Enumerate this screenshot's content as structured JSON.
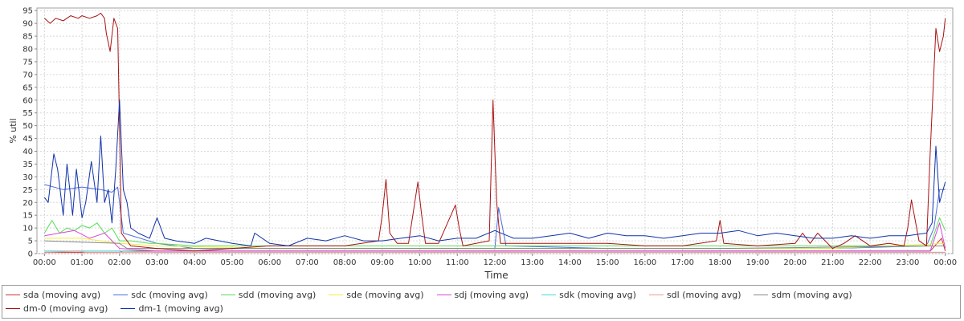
{
  "chart_data": {
    "type": "line",
    "ylabel": "% util",
    "xlabel": "Time",
    "ylim": [
      0,
      96
    ],
    "yticks": [
      0,
      5,
      10,
      15,
      20,
      25,
      30,
      35,
      40,
      45,
      50,
      55,
      60,
      65,
      70,
      75,
      80,
      85,
      90,
      95
    ],
    "xlim": [
      -0.2,
      24.2
    ],
    "xticks": [
      0,
      1,
      2,
      3,
      4,
      5,
      6,
      7,
      8,
      9,
      10,
      11,
      12,
      13,
      14,
      15,
      16,
      17,
      18,
      19,
      20,
      21,
      22,
      23,
      24
    ],
    "xtick_labels": [
      "00:00",
      "01:00",
      "02:00",
      "03:00",
      "04:00",
      "05:00",
      "06:00",
      "07:00",
      "08:00",
      "09:00",
      "10:00",
      "11:00",
      "12:00",
      "13:00",
      "14:00",
      "15:00",
      "16:00",
      "17:00",
      "18:00",
      "19:00",
      "20:00",
      "21:00",
      "22:00",
      "23:00",
      "00:00"
    ],
    "grid": true,
    "legend_position": "bottom",
    "series": [
      {
        "name": "sda (moving avg)",
        "color": "#cc3333",
        "x": [
          0,
          2,
          2.1,
          8,
          9,
          12,
          16,
          20,
          23.6,
          23.9,
          24
        ],
        "values": [
          0.5,
          0.5,
          1,
          1,
          1,
          1,
          1,
          1,
          1,
          6,
          1
        ]
      },
      {
        "name": "sdc (moving avg)",
        "color": "#4a6ee0",
        "x": [
          0,
          0.5,
          1,
          1.5,
          1.8,
          1.95,
          2.1,
          3,
          4,
          6,
          9,
          12,
          12.1,
          12.3,
          15,
          18,
          21,
          23.5,
          23.7,
          23.85,
          24
        ],
        "values": [
          27,
          25,
          26,
          25,
          24,
          26,
          8,
          4,
          2,
          2,
          2,
          2,
          18,
          3,
          2,
          2,
          2,
          3,
          10,
          25,
          25
        ]
      },
      {
        "name": "sdd (moving avg)",
        "color": "#55dd55",
        "x": [
          0,
          0.2,
          0.4,
          0.6,
          0.8,
          1,
          1.2,
          1.4,
          1.6,
          1.8,
          2,
          2.3,
          2.8,
          3,
          4,
          6,
          9,
          12,
          15,
          18,
          21,
          23.6,
          23.85,
          24
        ],
        "values": [
          8,
          13,
          8,
          10,
          9,
          11,
          10,
          12,
          8,
          10,
          5,
          5,
          4,
          4,
          3,
          3,
          3,
          3,
          3,
          3,
          3,
          3,
          14,
          9
        ]
      },
      {
        "name": "sde (moving avg)",
        "color": "#eeee44",
        "x": [
          0,
          1,
          2,
          3,
          6,
          9,
          12,
          15,
          18,
          21,
          24
        ],
        "values": [
          6,
          6,
          4,
          3,
          2,
          2,
          2,
          2,
          2,
          2,
          4
        ]
      },
      {
        "name": "sdj (moving avg)",
        "color": "#dd44dd",
        "x": [
          0,
          0.8,
          1.2,
          1.6,
          2,
          3,
          6,
          12,
          18,
          23.6,
          23.85,
          24
        ],
        "values": [
          7,
          9,
          6,
          8,
          2,
          1,
          1,
          1,
          1,
          1,
          12,
          2
        ]
      },
      {
        "name": "sdk (moving avg)",
        "color": "#44dddd",
        "x": [
          0,
          2,
          3,
          9,
          12,
          18,
          24
        ],
        "values": [
          1,
          1,
          0.5,
          0.5,
          0.5,
          0.5,
          0.5
        ]
      },
      {
        "name": "sdl (moving avg)",
        "color": "#ee9999",
        "x": [
          0,
          0.9,
          1.1,
          2,
          6,
          12,
          18,
          24
        ],
        "values": [
          0.5,
          1,
          0.5,
          0.5,
          0.5,
          0.5,
          0.5,
          0.5
        ]
      },
      {
        "name": "sdm (moving avg)",
        "color": "#888888",
        "x": [
          0,
          2,
          2.2,
          6,
          12,
          18,
          24
        ],
        "values": [
          5,
          4,
          2,
          2,
          2,
          2,
          3
        ]
      },
      {
        "name": "dm-0 (moving avg)",
        "color": "#aa1111",
        "x": [
          0,
          0.15,
          0.3,
          0.5,
          0.7,
          0.9,
          1,
          1.2,
          1.4,
          1.5,
          1.6,
          1.65,
          1.75,
          1.85,
          1.95,
          2.0,
          2.05,
          2.3,
          3,
          4,
          5,
          6,
          7,
          8,
          8.9,
          9.0,
          9.1,
          9.2,
          9.4,
          9.7,
          9.95,
          10.05,
          10.15,
          10.5,
          10.95,
          11.05,
          11.15,
          11.5,
          11.85,
          11.95,
          12.05,
          12.15,
          12.4,
          13,
          14,
          15,
          16,
          17,
          17.9,
          18,
          18.1,
          19,
          20,
          20.2,
          20.4,
          20.6,
          21,
          21.3,
          21.6,
          22,
          22.5,
          22.9,
          23.0,
          23.1,
          23.3,
          23.5,
          23.6,
          23.75,
          23.85,
          23.95,
          24
        ],
        "values": [
          92,
          90,
          92,
          91,
          93,
          92,
          93,
          92,
          93,
          94,
          92,
          86,
          79,
          92,
          88,
          50,
          8,
          3,
          2,
          1,
          2,
          3,
          3,
          3,
          5,
          15,
          29,
          8,
          4,
          4,
          28,
          15,
          4,
          4,
          19,
          10,
          3,
          4,
          5,
          60,
          20,
          4,
          4,
          4,
          4,
          4,
          3,
          3,
          5,
          13,
          4,
          3,
          4,
          8,
          4,
          8,
          2,
          4,
          7,
          3,
          4,
          3,
          10,
          21,
          5,
          3,
          40,
          88,
          79,
          85,
          92
        ]
      },
      {
        "name": "dm-1 (moving avg)",
        "color": "#1133aa",
        "x": [
          0,
          0.1,
          0.25,
          0.35,
          0.5,
          0.6,
          0.75,
          0.85,
          1,
          1.1,
          1.25,
          1.4,
          1.5,
          1.6,
          1.7,
          1.8,
          1.9,
          2.0,
          2.1,
          2.2,
          2.3,
          2.5,
          2.8,
          3,
          3.2,
          3.5,
          4,
          4.3,
          5,
          5.5,
          5.6,
          6,
          6.5,
          7,
          7.5,
          8,
          8.5,
          9,
          9.5,
          10,
          10.5,
          11,
          11.5,
          12,
          12.5,
          13,
          13.5,
          14,
          14.5,
          15,
          15.5,
          16,
          16.5,
          17,
          17.5,
          18,
          18.5,
          19,
          19.5,
          20,
          20.5,
          21,
          21.5,
          22,
          22.5,
          23,
          23.5,
          23.65,
          23.75,
          23.85,
          24
        ],
        "values": [
          22,
          20,
          39,
          33,
          15,
          35,
          15,
          33,
          14,
          20,
          36,
          20,
          46,
          20,
          25,
          12,
          33,
          60,
          25,
          20,
          10,
          8,
          6,
          14,
          6,
          5,
          4,
          6,
          4,
          3,
          8,
          4,
          3,
          6,
          5,
          7,
          5,
          5,
          6,
          7,
          5,
          6,
          6,
          9,
          6,
          6,
          7,
          8,
          6,
          8,
          7,
          7,
          6,
          7,
          8,
          8,
          9,
          7,
          8,
          7,
          6,
          6,
          7,
          6,
          7,
          7,
          8,
          12,
          42,
          20,
          28
        ]
      }
    ]
  }
}
